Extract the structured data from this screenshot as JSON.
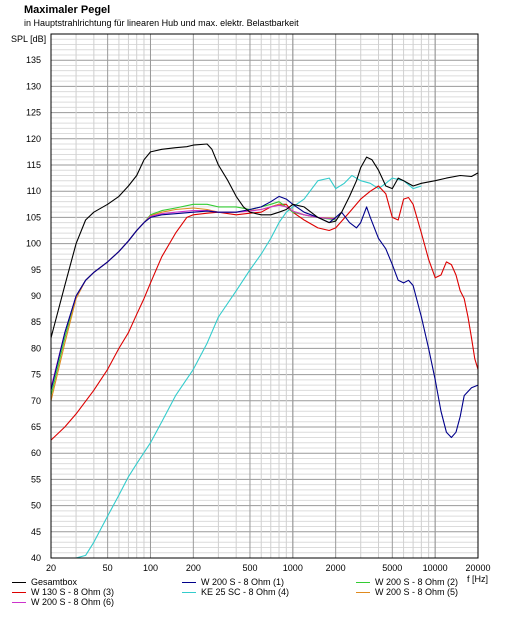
{
  "chart_data": {
    "type": "line",
    "title": "Maximaler Pegel",
    "subtitle": "in Hauptstrahlrichtung für linearen Hub und max. elektr. Belastbarkeit",
    "ylabel": "SPL [dB]",
    "xlabel": "f [Hz]",
    "x_scale": "log",
    "xlim": [
      20,
      20000
    ],
    "ylim": [
      40,
      140
    ],
    "grid": true,
    "legend_position": "bottom",
    "x_tick_labels": [
      "20",
      "50",
      "100",
      "200",
      "500",
      "1000",
      "2000",
      "5000",
      "10000",
      "20000"
    ],
    "x_tick_values": [
      20,
      50,
      100,
      200,
      500,
      1000,
      2000,
      5000,
      10000,
      20000
    ],
    "y_tick_labels": [
      "40",
      "45",
      "50",
      "55",
      "60",
      "65",
      "70",
      "75",
      "80",
      "85",
      "90",
      "95",
      "100",
      "105",
      "110",
      "115",
      "120",
      "125",
      "130",
      "135"
    ],
    "y_tick_values": [
      40,
      45,
      50,
      55,
      60,
      65,
      70,
      75,
      80,
      85,
      90,
      95,
      100,
      105,
      110,
      115,
      120,
      125,
      130,
      135
    ],
    "series": [
      {
        "name": "Gesamtbox",
        "color": "#000000",
        "points": [
          [
            20,
            82
          ],
          [
            25,
            92
          ],
          [
            30,
            100
          ],
          [
            35,
            104.5
          ],
          [
            40,
            106
          ],
          [
            50,
            107.5
          ],
          [
            60,
            109
          ],
          [
            70,
            111
          ],
          [
            80,
            113
          ],
          [
            90,
            116
          ],
          [
            100,
            117.5
          ],
          [
            120,
            118
          ],
          [
            150,
            118.3
          ],
          [
            180,
            118.5
          ],
          [
            200,
            118.8
          ],
          [
            250,
            119
          ],
          [
            270,
            118
          ],
          [
            300,
            115
          ],
          [
            350,
            112
          ],
          [
            400,
            109
          ],
          [
            450,
            107
          ],
          [
            500,
            106
          ],
          [
            600,
            105.5
          ],
          [
            700,
            105.5
          ],
          [
            800,
            106
          ],
          [
            900,
            106.5
          ],
          [
            1000,
            107.5
          ],
          [
            1200,
            107
          ],
          [
            1500,
            105
          ],
          [
            1800,
            104
          ],
          [
            2000,
            104.3
          ],
          [
            2200,
            106
          ],
          [
            2500,
            109
          ],
          [
            2800,
            112
          ],
          [
            3000,
            114.5
          ],
          [
            3300,
            116.5
          ],
          [
            3600,
            116
          ],
          [
            4000,
            114
          ],
          [
            4500,
            111
          ],
          [
            5000,
            110.5
          ],
          [
            5500,
            112.5
          ],
          [
            6000,
            112
          ],
          [
            7000,
            111
          ],
          [
            8000,
            111.5
          ],
          [
            10000,
            112
          ],
          [
            12000,
            112.5
          ],
          [
            15000,
            113
          ],
          [
            18000,
            112.8
          ],
          [
            20000,
            113.5
          ]
        ]
      },
      {
        "name": "W 200 S - 8 Ohm (1)",
        "color": "#00008b",
        "points": [
          [
            20,
            72
          ],
          [
            25,
            83
          ],
          [
            30,
            90
          ],
          [
            35,
            93
          ],
          [
            40,
            94.5
          ],
          [
            50,
            96.5
          ],
          [
            60,
            98.5
          ],
          [
            70,
            100.5
          ],
          [
            80,
            102.5
          ],
          [
            90,
            104
          ],
          [
            100,
            105
          ],
          [
            120,
            105.5
          ],
          [
            150,
            105.7
          ],
          [
            200,
            106
          ],
          [
            250,
            106.2
          ],
          [
            300,
            106
          ],
          [
            400,
            106
          ],
          [
            500,
            106.5
          ],
          [
            600,
            107
          ],
          [
            700,
            108
          ],
          [
            800,
            109
          ],
          [
            900,
            108.5
          ],
          [
            1000,
            107.5
          ],
          [
            1200,
            106
          ],
          [
            1500,
            105
          ],
          [
            1800,
            104
          ],
          [
            2000,
            105
          ],
          [
            2200,
            106
          ],
          [
            2500,
            104
          ],
          [
            2800,
            103
          ],
          [
            3000,
            104
          ],
          [
            3300,
            107
          ],
          [
            3500,
            105
          ],
          [
            4000,
            101
          ],
          [
            4500,
            99
          ],
          [
            5000,
            96
          ],
          [
            5500,
            93
          ],
          [
            6000,
            92.5
          ],
          [
            6500,
            93
          ],
          [
            7000,
            92
          ],
          [
            8000,
            86
          ],
          [
            9000,
            80
          ],
          [
            10000,
            74
          ],
          [
            11000,
            68
          ],
          [
            12000,
            64
          ],
          [
            13000,
            63
          ],
          [
            14000,
            64
          ],
          [
            15000,
            67
          ],
          [
            16000,
            71
          ],
          [
            18000,
            72.5
          ],
          [
            20000,
            73
          ]
        ]
      },
      {
        "name": "W 200 S - 8 Ohm (2)",
        "color": "#33cc33",
        "points": [
          [
            20,
            71
          ],
          [
            25,
            82
          ],
          [
            30,
            90
          ],
          [
            35,
            93
          ],
          [
            40,
            94.5
          ],
          [
            50,
            96.5
          ],
          [
            60,
            98.5
          ],
          [
            70,
            100.5
          ],
          [
            80,
            102.5
          ],
          [
            90,
            104
          ],
          [
            100,
            105.5
          ],
          [
            120,
            106.3
          ],
          [
            150,
            106.8
          ],
          [
            200,
            107.5
          ],
          [
            250,
            107.5
          ],
          [
            300,
            107
          ],
          [
            400,
            107
          ],
          [
            500,
            106.5
          ],
          [
            600,
            107
          ],
          [
            700,
            107.5
          ],
          [
            800,
            108
          ],
          [
            900,
            107
          ],
          [
            1000,
            106
          ],
          [
            1200,
            105.5
          ],
          [
            1500,
            105
          ],
          [
            2000,
            104.5
          ]
        ]
      },
      {
        "name": "W 130 S - 8 Ohm (3)",
        "color": "#dd0000",
        "points": [
          [
            20,
            62.5
          ],
          [
            25,
            65
          ],
          [
            30,
            67.5
          ],
          [
            40,
            72
          ],
          [
            50,
            76
          ],
          [
            60,
            80
          ],
          [
            70,
            83
          ],
          [
            80,
            86.5
          ],
          [
            90,
            89.5
          ],
          [
            100,
            92.5
          ],
          [
            120,
            97.5
          ],
          [
            150,
            102
          ],
          [
            180,
            105
          ],
          [
            200,
            105.5
          ],
          [
            250,
            105.8
          ],
          [
            300,
            106
          ],
          [
            400,
            105.5
          ],
          [
            500,
            105.8
          ],
          [
            600,
            106
          ],
          [
            700,
            107
          ],
          [
            800,
            107.5
          ],
          [
            900,
            107.5
          ],
          [
            1000,
            106
          ],
          [
            1200,
            104.5
          ],
          [
            1500,
            103
          ],
          [
            1800,
            102.5
          ],
          [
            2000,
            103
          ],
          [
            2500,
            106
          ],
          [
            3000,
            108.5
          ],
          [
            3500,
            110
          ],
          [
            4000,
            111
          ],
          [
            4500,
            109.5
          ],
          [
            5000,
            105
          ],
          [
            5500,
            104.5
          ],
          [
            6000,
            108.5
          ],
          [
            6500,
            108.8
          ],
          [
            7000,
            107.5
          ],
          [
            8000,
            102
          ],
          [
            9000,
            97
          ],
          [
            10000,
            93.5
          ],
          [
            11000,
            94
          ],
          [
            12000,
            96.5
          ],
          [
            13000,
            96
          ],
          [
            14000,
            94
          ],
          [
            15000,
            91
          ],
          [
            16000,
            89.5
          ],
          [
            17000,
            86
          ],
          [
            18000,
            82
          ],
          [
            19000,
            78
          ],
          [
            20000,
            76
          ]
        ]
      },
      {
        "name": "KE 25 SC - 8 Ohm    (4)",
        "color": "#33cccc",
        "points": [
          [
            20,
            40
          ],
          [
            25,
            40
          ],
          [
            30,
            40
          ],
          [
            35,
            40.5
          ],
          [
            40,
            43
          ],
          [
            50,
            48
          ],
          [
            60,
            52
          ],
          [
            70,
            55.5
          ],
          [
            80,
            58
          ],
          [
            100,
            62
          ],
          [
            120,
            66
          ],
          [
            150,
            71
          ],
          [
            200,
            76
          ],
          [
            250,
            81
          ],
          [
            300,
            86
          ],
          [
            400,
            91
          ],
          [
            500,
            95
          ],
          [
            600,
            98
          ],
          [
            700,
            101
          ],
          [
            800,
            104
          ],
          [
            900,
            106
          ],
          [
            1000,
            107
          ],
          [
            1200,
            108.5
          ],
          [
            1500,
            112
          ],
          [
            1800,
            112.5
          ],
          [
            2000,
            110.5
          ],
          [
            2300,
            111.5
          ],
          [
            2600,
            113
          ],
          [
            3000,
            112
          ],
          [
            3500,
            111.5
          ],
          [
            4000,
            110.5
          ],
          [
            4500,
            111.5
          ],
          [
            5000,
            112.5
          ],
          [
            6000,
            112
          ],
          [
            7000,
            110.5
          ],
          [
            8000,
            111
          ]
        ]
      },
      {
        "name": "W 200 S - 8 Ohm (5)",
        "color": "#e08a1e",
        "points": [
          [
            20,
            70
          ],
          [
            25,
            81
          ],
          [
            30,
            89.5
          ],
          [
            35,
            93
          ],
          [
            40,
            94.5
          ],
          [
            50,
            96.5
          ],
          [
            60,
            98.5
          ],
          [
            70,
            100.5
          ],
          [
            80,
            102.5
          ],
          [
            90,
            104
          ],
          [
            100,
            105.3
          ],
          [
            120,
            106
          ],
          [
            150,
            106.5
          ],
          [
            200,
            106.8
          ],
          [
            250,
            106.5
          ],
          [
            300,
            106
          ],
          [
            400,
            106
          ],
          [
            500,
            106.3
          ],
          [
            600,
            106.5
          ],
          [
            700,
            107
          ],
          [
            800,
            107.5
          ],
          [
            900,
            107
          ],
          [
            1000,
            106.2
          ],
          [
            1200,
            105.5
          ],
          [
            1500,
            105
          ],
          [
            2000,
            104.8
          ]
        ]
      },
      {
        "name": "W 200 S - 8 Ohm (6)",
        "color": "#cc33cc",
        "points": [
          [
            20,
            72.5
          ],
          [
            25,
            83
          ],
          [
            30,
            90
          ],
          [
            35,
            93
          ],
          [
            40,
            94.5
          ],
          [
            50,
            96.5
          ],
          [
            60,
            98.5
          ],
          [
            70,
            100.5
          ],
          [
            80,
            102.5
          ],
          [
            90,
            104
          ],
          [
            100,
            105.2
          ],
          [
            120,
            105.7
          ],
          [
            150,
            106
          ],
          [
            200,
            106.3
          ],
          [
            250,
            106.3
          ],
          [
            300,
            106
          ],
          [
            400,
            106
          ],
          [
            500,
            106.2
          ],
          [
            600,
            106.5
          ],
          [
            700,
            107
          ],
          [
            800,
            107.3
          ],
          [
            900,
            107
          ],
          [
            1000,
            106.2
          ],
          [
            1200,
            105.5
          ],
          [
            1500,
            105
          ],
          [
            2000,
            104.7
          ]
        ]
      }
    ]
  }
}
